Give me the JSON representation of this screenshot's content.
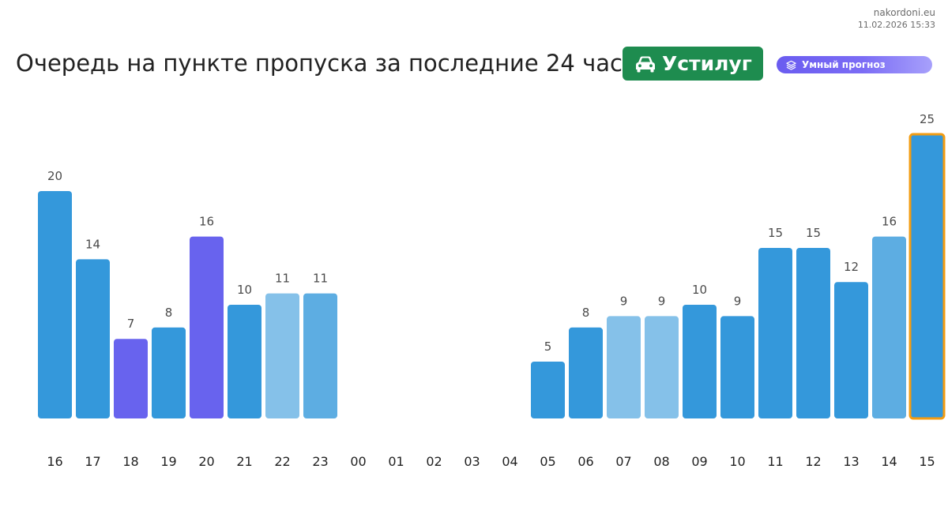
{
  "header": {
    "site": "nakordoni.eu",
    "timestamp": "11.02.2026 15:33",
    "title": "Очередь на пункте пропуска за последние 24 часа",
    "checkpoint": "Устилуг",
    "checkpoint_icon": "car-icon",
    "forecast_label": "Умный прогноз",
    "forecast_icon": "layers-icon"
  },
  "colors": {
    "checkpoint_badge": "#1e8c4f",
    "bar_blue": "#3498db",
    "bar_purple": "#6863ee",
    "bar_light": "#85c1e9",
    "bar_mid": "#5dade2",
    "highlight_border": "#f39c12"
  },
  "chart_data": {
    "type": "bar",
    "categories": [
      "16",
      "17",
      "18",
      "19",
      "20",
      "21",
      "22",
      "23",
      "00",
      "01",
      "02",
      "03",
      "04",
      "05",
      "06",
      "07",
      "08",
      "09",
      "10",
      "11",
      "12",
      "13",
      "14",
      "15"
    ],
    "values": [
      20,
      14,
      7,
      8,
      16,
      10,
      11,
      11,
      null,
      null,
      null,
      null,
      null,
      5,
      8,
      9,
      9,
      10,
      9,
      15,
      15,
      12,
      16,
      25
    ],
    "bar_colors": [
      "#3498db",
      "#3498db",
      "#6863ee",
      "#3498db",
      "#6863ee",
      "#3498db",
      "#85c1e9",
      "#5dade2",
      null,
      null,
      null,
      null,
      null,
      "#3498db",
      "#3498db",
      "#85c1e9",
      "#85c1e9",
      "#3498db",
      "#3498db",
      "#3498db",
      "#3498db",
      "#3498db",
      "#5dade2",
      "#3498db"
    ],
    "highlighted_category": "15",
    "ylim": [
      0,
      25
    ],
    "grid": false,
    "legend": "none"
  }
}
